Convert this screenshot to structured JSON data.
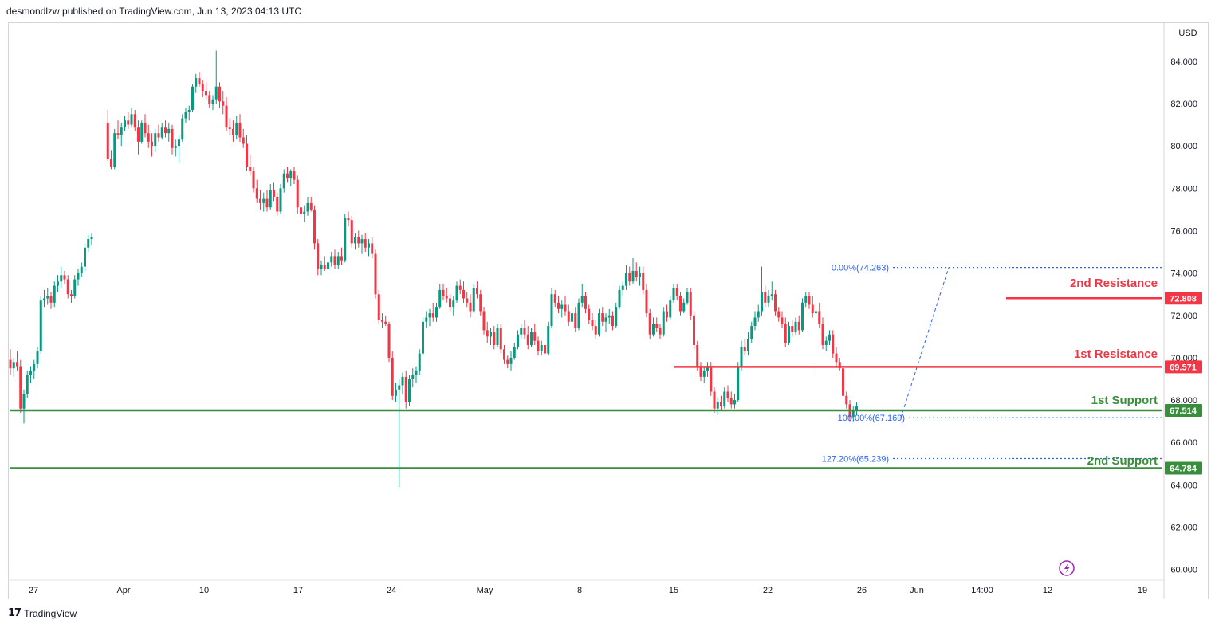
{
  "header": {
    "publish_line": "desmondlzw published on TradingView.com, Jun 13, 2023 04:13 UTC"
  },
  "footer": {
    "brand": "TradingView",
    "logo_glyph": "17"
  },
  "axis": {
    "currency": "USD"
  },
  "colors": {
    "up": "#089981",
    "down": "#f23645",
    "resistance": "#f23645",
    "support": "#388e3c",
    "fib": "#2962ff"
  },
  "chart_data": {
    "type": "candlestick",
    "ylim": [
      59.5,
      85.8
    ],
    "y_ticks": [
      "84.000",
      "82.000",
      "80.000",
      "78.000",
      "76.000",
      "74.000",
      "72.000",
      "70.000",
      "68.000",
      "66.000",
      "64.000",
      "62.000",
      "60.000"
    ],
    "x_ticks": [
      "27",
      "Apr",
      "10",
      "17",
      "24",
      "May",
      "8",
      "15",
      "22",
      "26",
      "Jun",
      "14:00",
      "12",
      "19"
    ],
    "levels": [
      {
        "name": "2nd Resistance",
        "value": 72.808,
        "label": "72.808",
        "kind": "resistance"
      },
      {
        "name": "1st Resistance",
        "value": 69.571,
        "label": "69.571",
        "kind": "resistance"
      },
      {
        "name": "1st Support",
        "value": 67.514,
        "label": "67.514",
        "kind": "support"
      },
      {
        "name": "2nd Support",
        "value": 64.784,
        "label": "64.784",
        "kind": "support"
      }
    ],
    "fib_levels": [
      {
        "label": "0.00%(74.263)",
        "value": 74.263
      },
      {
        "label": "100.00%(67.169)",
        "value": 67.169
      },
      {
        "label": "127.20%(65.239)",
        "value": 65.239
      }
    ],
    "candles": [
      [
        69.9,
        70.4,
        69.2,
        69.5
      ],
      [
        69.5,
        70.0,
        69.1,
        69.8
      ],
      [
        69.8,
        70.3,
        69.4,
        69.6
      ],
      [
        69.6,
        69.9,
        67.4,
        67.6
      ],
      [
        67.6,
        68.5,
        66.9,
        68.3
      ],
      [
        68.3,
        69.4,
        68.1,
        69.2
      ],
      [
        69.2,
        69.6,
        68.8,
        69.4
      ],
      [
        69.4,
        69.9,
        69.0,
        69.7
      ],
      [
        69.7,
        70.5,
        69.5,
        70.3
      ],
      [
        70.3,
        72.9,
        70.2,
        72.7
      ],
      [
        72.7,
        73.2,
        72.4,
        72.8
      ],
      [
        72.8,
        73.3,
        72.5,
        72.9
      ],
      [
        72.9,
        73.1,
        72.3,
        72.6
      ],
      [
        72.6,
        73.6,
        72.4,
        73.4
      ],
      [
        73.4,
        73.9,
        73.1,
        73.6
      ],
      [
        73.6,
        74.3,
        73.3,
        73.9
      ],
      [
        73.9,
        74.1,
        73.5,
        73.7
      ],
      [
        73.7,
        73.9,
        72.8,
        73.0
      ],
      [
        73.0,
        73.2,
        72.6,
        72.9
      ],
      [
        72.9,
        73.9,
        72.8,
        73.7
      ],
      [
        73.7,
        74.2,
        73.4,
        74.0
      ],
      [
        74.0,
        74.5,
        73.8,
        74.3
      ],
      [
        74.3,
        75.4,
        74.1,
        75.2
      ],
      [
        75.2,
        75.8,
        75.0,
        75.6
      ],
      [
        75.6,
        75.9,
        75.3,
        75.7
      ],
      [
        81.1,
        81.7,
        79.3,
        79.4
      ],
      [
        79.4,
        79.8,
        78.9,
        79.0
      ],
      [
        79.0,
        80.8,
        78.9,
        80.6
      ],
      [
        80.6,
        81.2,
        80.3,
        80.5
      ],
      [
        80.5,
        81.1,
        80.0,
        80.9
      ],
      [
        80.9,
        81.4,
        80.7,
        81.2
      ],
      [
        81.2,
        81.6,
        80.8,
        81.0
      ],
      [
        81.0,
        81.8,
        80.9,
        81.5
      ],
      [
        81.5,
        81.7,
        80.7,
        80.9
      ],
      [
        80.9,
        81.2,
        79.6,
        80.2
      ],
      [
        80.2,
        81.2,
        80.1,
        81.1
      ],
      [
        81.1,
        81.5,
        80.4,
        80.6
      ],
      [
        80.6,
        81.0,
        79.9,
        80.2
      ],
      [
        80.2,
        80.6,
        79.5,
        80.0
      ],
      [
        80.0,
        80.8,
        79.7,
        80.6
      ],
      [
        80.6,
        81.0,
        80.2,
        80.4
      ],
      [
        80.4,
        81.1,
        80.3,
        80.9
      ],
      [
        80.9,
        81.2,
        80.4,
        80.6
      ],
      [
        80.6,
        81.1,
        80.2,
        80.8
      ],
      [
        80.8,
        81.0,
        79.6,
        79.9
      ],
      [
        79.9,
        80.3,
        79.5,
        80.0
      ],
      [
        80.0,
        80.5,
        79.2,
        80.3
      ],
      [
        80.3,
        81.5,
        80.2,
        81.3
      ],
      [
        81.3,
        81.8,
        81.1,
        81.6
      ],
      [
        81.6,
        81.9,
        81.2,
        81.7
      ],
      [
        81.7,
        82.9,
        81.6,
        82.8
      ],
      [
        82.8,
        83.4,
        82.5,
        83.2
      ],
      [
        83.2,
        83.5,
        82.8,
        82.9
      ],
      [
        82.9,
        83.1,
        82.3,
        82.6
      ],
      [
        82.6,
        83.0,
        82.2,
        82.4
      ],
      [
        82.4,
        82.6,
        81.8,
        82.0
      ],
      [
        82.0,
        82.4,
        81.7,
        82.2
      ],
      [
        82.2,
        84.5,
        82.0,
        82.8
      ],
      [
        82.8,
        83.0,
        81.8,
        82.1
      ],
      [
        82.1,
        82.6,
        81.5,
        81.9
      ],
      [
        81.9,
        82.3,
        80.7,
        80.9
      ],
      [
        80.9,
        81.3,
        80.5,
        80.8
      ],
      [
        80.8,
        81.2,
        80.2,
        80.5
      ],
      [
        80.5,
        81.4,
        80.3,
        81.1
      ],
      [
        81.1,
        81.5,
        80.2,
        80.4
      ],
      [
        80.4,
        80.8,
        79.9,
        80.1
      ],
      [
        80.1,
        80.5,
        78.8,
        79.0
      ],
      [
        79.0,
        79.6,
        78.6,
        78.8
      ],
      [
        78.8,
        79.0,
        77.8,
        78.0
      ],
      [
        78.0,
        78.4,
        77.3,
        77.5
      ],
      [
        77.5,
        77.9,
        77.0,
        77.3
      ],
      [
        77.3,
        77.8,
        76.9,
        77.5
      ],
      [
        77.5,
        77.9,
        76.9,
        77.1
      ],
      [
        77.1,
        78.2,
        77.0,
        77.9
      ],
      [
        77.9,
        78.3,
        77.4,
        77.6
      ],
      [
        77.6,
        77.8,
        76.7,
        76.9
      ],
      [
        76.9,
        78.2,
        76.8,
        78.0
      ],
      [
        78.0,
        78.9,
        77.8,
        78.7
      ],
      [
        78.7,
        79.0,
        78.3,
        78.5
      ],
      [
        78.5,
        78.9,
        78.1,
        78.8
      ],
      [
        78.8,
        79.0,
        78.2,
        78.4
      ],
      [
        78.4,
        78.6,
        76.8,
        77.1
      ],
      [
        77.1,
        77.5,
        76.6,
        76.8
      ],
      [
        76.8,
        77.2,
        76.4,
        76.9
      ],
      [
        76.9,
        77.6,
        76.7,
        77.3
      ],
      [
        77.3,
        77.6,
        76.9,
        77.0
      ],
      [
        77.0,
        77.2,
        75.1,
        75.4
      ],
      [
        75.4,
        75.6,
        73.9,
        74.2
      ],
      [
        74.2,
        74.6,
        73.9,
        74.4
      ],
      [
        74.4,
        74.8,
        74.1,
        74.2
      ],
      [
        74.2,
        74.7,
        74.0,
        74.5
      ],
      [
        74.5,
        75.0,
        74.3,
        74.8
      ],
      [
        74.8,
        75.1,
        74.2,
        74.4
      ],
      [
        74.4,
        75.0,
        74.2,
        74.8
      ],
      [
        74.8,
        75.2,
        74.4,
        74.6
      ],
      [
        74.6,
        76.8,
        74.5,
        76.6
      ],
      [
        76.6,
        76.9,
        76.2,
        76.5
      ],
      [
        76.5,
        76.7,
        75.2,
        75.4
      ],
      [
        75.4,
        75.9,
        75.1,
        75.7
      ],
      [
        75.7,
        76.0,
        75.2,
        75.4
      ],
      [
        75.4,
        75.8,
        74.9,
        75.6
      ],
      [
        75.6,
        75.9,
        75.0,
        75.2
      ],
      [
        75.2,
        75.6,
        74.8,
        75.4
      ],
      [
        75.4,
        75.7,
        74.7,
        74.9
      ],
      [
        74.9,
        75.1,
        72.8,
        73.0
      ],
      [
        73.0,
        73.2,
        71.6,
        71.8
      ],
      [
        71.8,
        72.1,
        71.4,
        71.7
      ],
      [
        71.7,
        72.0,
        71.5,
        71.6
      ],
      [
        71.6,
        71.7,
        69.8,
        70.0
      ],
      [
        70.0,
        70.3,
        68.0,
        68.2
      ],
      [
        68.2,
        68.8,
        67.9,
        68.5
      ],
      [
        68.5,
        69.0,
        63.9,
        68.7
      ],
      [
        68.7,
        69.3,
        68.3,
        69.1
      ],
      [
        69.1,
        69.4,
        67.6,
        67.9
      ],
      [
        67.9,
        69.2,
        67.7,
        69.0
      ],
      [
        69.0,
        69.5,
        68.6,
        69.2
      ],
      [
        69.2,
        69.6,
        68.8,
        69.4
      ],
      [
        69.4,
        70.4,
        69.2,
        70.2
      ],
      [
        70.2,
        71.9,
        70.1,
        71.7
      ],
      [
        71.7,
        72.2,
        71.4,
        71.9
      ],
      [
        71.9,
        72.3,
        71.5,
        72.1
      ],
      [
        72.1,
        72.6,
        71.7,
        71.9
      ],
      [
        71.9,
        72.6,
        71.7,
        72.4
      ],
      [
        72.4,
        73.5,
        72.3,
        73.2
      ],
      [
        73.2,
        73.5,
        72.7,
        72.9
      ],
      [
        72.9,
        73.3,
        72.6,
        72.8
      ],
      [
        72.8,
        73.0,
        72.2,
        72.4
      ],
      [
        72.4,
        72.9,
        72.0,
        72.7
      ],
      [
        72.7,
        73.6,
        72.6,
        73.4
      ],
      [
        73.4,
        73.7,
        73.0,
        73.2
      ],
      [
        73.2,
        73.6,
        72.6,
        72.8
      ],
      [
        72.8,
        73.1,
        72.4,
        72.6
      ],
      [
        72.6,
        73.0,
        71.9,
        72.2
      ],
      [
        72.2,
        73.5,
        72.1,
        73.3
      ],
      [
        73.3,
        73.6,
        72.8,
        73.0
      ],
      [
        73.0,
        73.2,
        72.0,
        72.2
      ],
      [
        72.2,
        72.4,
        71.1,
        71.3
      ],
      [
        71.3,
        71.7,
        70.7,
        71.0
      ],
      [
        71.0,
        71.4,
        70.6,
        71.2
      ],
      [
        71.2,
        71.5,
        70.4,
        70.6
      ],
      [
        70.6,
        71.6,
        70.5,
        71.4
      ],
      [
        71.4,
        71.6,
        70.2,
        70.4
      ],
      [
        70.4,
        70.6,
        69.7,
        69.9
      ],
      [
        69.9,
        70.1,
        69.5,
        69.7
      ],
      [
        69.7,
        70.3,
        69.4,
        70.0
      ],
      [
        70.0,
        70.7,
        69.9,
        70.5
      ],
      [
        70.5,
        71.3,
        70.4,
        71.1
      ],
      [
        71.1,
        71.6,
        70.9,
        71.4
      ],
      [
        71.4,
        71.8,
        70.9,
        71.1
      ],
      [
        71.1,
        71.5,
        70.4,
        70.6
      ],
      [
        70.6,
        71.4,
        70.5,
        71.2
      ],
      [
        71.2,
        71.6,
        70.6,
        70.8
      ],
      [
        70.8,
        71.0,
        70.1,
        70.3
      ],
      [
        70.3,
        70.8,
        70.1,
        70.6
      ],
      [
        70.6,
        70.9,
        70.0,
        70.2
      ],
      [
        70.2,
        71.7,
        70.1,
        71.5
      ],
      [
        71.5,
        73.3,
        71.4,
        73.0
      ],
      [
        73.0,
        73.2,
        72.4,
        72.6
      ],
      [
        72.6,
        72.9,
        72.1,
        72.3
      ],
      [
        72.3,
        72.7,
        71.9,
        72.5
      ],
      [
        72.5,
        72.9,
        72.0,
        72.2
      ],
      [
        72.2,
        72.5,
        71.5,
        71.7
      ],
      [
        71.7,
        72.3,
        71.5,
        72.1
      ],
      [
        72.1,
        72.4,
        71.2,
        71.4
      ],
      [
        71.4,
        72.8,
        71.3,
        72.6
      ],
      [
        72.6,
        73.5,
        72.4,
        72.9
      ],
      [
        72.9,
        73.1,
        72.1,
        72.3
      ],
      [
        72.3,
        72.5,
        71.6,
        71.8
      ],
      [
        71.8,
        72.1,
        71.3,
        71.5
      ],
      [
        71.5,
        71.8,
        70.9,
        71.1
      ],
      [
        71.1,
        72.3,
        71.0,
        72.1
      ],
      [
        72.1,
        72.4,
        71.5,
        71.7
      ],
      [
        71.7,
        72.1,
        71.2,
        71.9
      ],
      [
        71.9,
        72.3,
        71.6,
        72.0
      ],
      [
        72.0,
        72.2,
        71.3,
        71.5
      ],
      [
        71.5,
        72.6,
        71.4,
        72.4
      ],
      [
        72.4,
        73.4,
        72.3,
        73.2
      ],
      [
        73.2,
        73.6,
        72.9,
        73.4
      ],
      [
        73.4,
        74.4,
        73.2,
        74.0
      ],
      [
        74.0,
        74.3,
        73.4,
        73.6
      ],
      [
        73.6,
        74.7,
        73.5,
        74.1
      ],
      [
        74.1,
        74.5,
        73.6,
        73.8
      ],
      [
        73.8,
        74.3,
        73.4,
        74.0
      ],
      [
        74.0,
        74.3,
        73.0,
        73.2
      ],
      [
        73.2,
        73.5,
        71.9,
        72.1
      ],
      [
        72.1,
        72.3,
        70.9,
        71.1
      ],
      [
        71.1,
        71.9,
        71.0,
        71.6
      ],
      [
        71.6,
        71.9,
        71.2,
        71.4
      ],
      [
        71.4,
        71.6,
        70.9,
        71.1
      ],
      [
        71.1,
        72.4,
        71.0,
        72.2
      ],
      [
        72.2,
        72.5,
        71.7,
        71.9
      ],
      [
        71.9,
        72.9,
        71.8,
        72.7
      ],
      [
        72.7,
        73.5,
        72.6,
        73.3
      ],
      [
        73.3,
        73.5,
        72.7,
        72.9
      ],
      [
        72.9,
        73.1,
        72.0,
        72.2
      ],
      [
        72.2,
        72.8,
        72.1,
        72.6
      ],
      [
        72.6,
        73.3,
        72.5,
        73.1
      ],
      [
        73.1,
        73.3,
        71.8,
        72.0
      ],
      [
        72.0,
        72.2,
        70.4,
        70.6
      ],
      [
        70.6,
        70.8,
        69.4,
        69.6
      ],
      [
        69.6,
        69.8,
        68.9,
        69.1
      ],
      [
        69.1,
        69.6,
        68.8,
        69.4
      ],
      [
        69.4,
        69.8,
        69.1,
        69.6
      ],
      [
        69.6,
        69.8,
        68.2,
        68.4
      ],
      [
        68.4,
        68.6,
        67.4,
        67.6
      ],
      [
        67.6,
        68.1,
        67.3,
        67.9
      ],
      [
        67.9,
        68.2,
        67.5,
        67.7
      ],
      [
        67.7,
        68.6,
        67.6,
        68.4
      ],
      [
        68.4,
        68.7,
        67.9,
        68.1
      ],
      [
        68.1,
        68.4,
        67.6,
        67.8
      ],
      [
        67.8,
        68.3,
        67.6,
        68.0
      ],
      [
        68.0,
        69.8,
        67.9,
        69.6
      ],
      [
        69.6,
        70.8,
        69.4,
        70.5
      ],
      [
        70.5,
        70.9,
        70.1,
        70.3
      ],
      [
        70.3,
        71.2,
        70.1,
        70.9
      ],
      [
        70.9,
        71.7,
        70.7,
        71.5
      ],
      [
        71.5,
        72.2,
        71.3,
        71.9
      ],
      [
        71.9,
        72.5,
        71.7,
        72.2
      ],
      [
        72.2,
        74.3,
        72.0,
        73.1
      ],
      [
        73.1,
        73.4,
        72.4,
        72.6
      ],
      [
        72.6,
        73.2,
        72.4,
        72.9
      ],
      [
        72.9,
        73.6,
        72.7,
        73.0
      ],
      [
        73.0,
        73.2,
        72.0,
        72.2
      ],
      [
        72.2,
        72.4,
        71.7,
        71.9
      ],
      [
        71.9,
        72.2,
        71.4,
        71.6
      ],
      [
        71.6,
        71.9,
        70.5,
        70.7
      ],
      [
        70.7,
        71.7,
        70.6,
        71.5
      ],
      [
        71.5,
        71.8,
        71.0,
        71.2
      ],
      [
        71.2,
        71.9,
        71.1,
        71.7
      ],
      [
        71.7,
        72.0,
        71.1,
        71.3
      ],
      [
        71.3,
        72.8,
        71.2,
        72.6
      ],
      [
        72.6,
        73.1,
        72.4,
        72.9
      ],
      [
        72.9,
        73.1,
        72.3,
        72.5
      ],
      [
        72.5,
        72.9,
        71.9,
        72.1
      ],
      [
        72.1,
        72.4,
        69.3,
        72.2
      ],
      [
        72.2,
        72.6,
        71.4,
        71.6
      ],
      [
        71.6,
        71.9,
        70.4,
        70.6
      ],
      [
        70.6,
        71.0,
        70.3,
        70.8
      ],
      [
        70.8,
        71.3,
        70.6,
        71.1
      ],
      [
        71.1,
        71.3,
        70.0,
        70.2
      ],
      [
        70.2,
        70.5,
        69.6,
        69.8
      ],
      [
        69.8,
        70.0,
        69.4,
        69.5
      ],
      [
        69.5,
        69.7,
        68.0,
        68.2
      ],
      [
        68.2,
        68.4,
        67.6,
        67.8
      ],
      [
        67.8,
        68.0,
        67.0,
        67.2
      ],
      [
        67.2,
        67.7,
        67.0,
        67.5
      ],
      [
        67.5,
        67.9,
        67.3,
        67.7
      ]
    ]
  }
}
